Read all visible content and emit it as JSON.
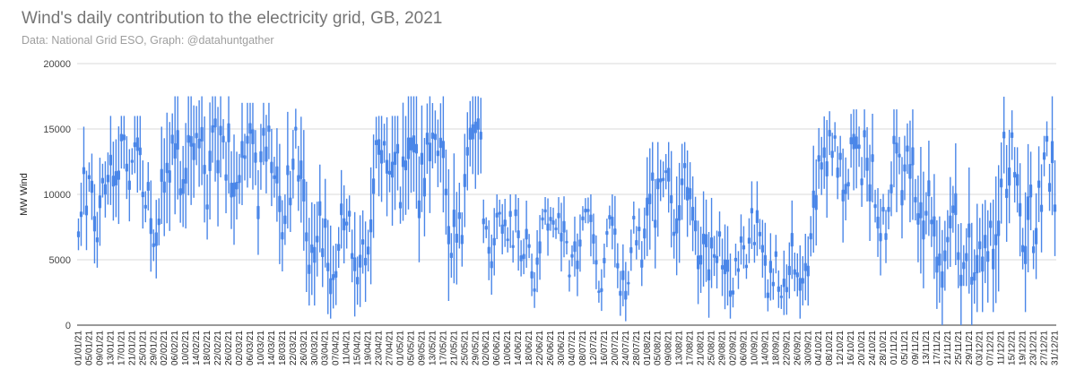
{
  "title": "Wind's daily contribution to the electricity grid, GB, 2021",
  "subtitle": "Data: National Grid ESO, Graph: @datahuntgather",
  "chart_data": {
    "type": "candlestick",
    "ylabel": "MW Wind",
    "xlabel": "",
    "ylim": [
      0,
      20000
    ],
    "yticks": [
      0,
      5000,
      10000,
      15000,
      20000
    ],
    "grid": true,
    "legend": "none",
    "series_color": "#4a86e8",
    "xtick_labels": [
      "01/01/21",
      "05/01/21",
      "09/01/21",
      "13/01/21",
      "17/01/21",
      "21/01/21",
      "25/01/21",
      "29/01/21",
      "02/02/21",
      "06/02/21",
      "10/02/21",
      "14/02/21",
      "18/02/21",
      "22/02/21",
      "26/02/21",
      "02/03/21",
      "06/03/21",
      "10/03/21",
      "14/03/21",
      "18/03/21",
      "22/03/21",
      "26/03/21",
      "30/03/21",
      "03/04/21",
      "07/04/21",
      "11/04/21",
      "15/04/21",
      "19/04/21",
      "23/04/21",
      "27/04/21",
      "01/05/21",
      "05/05/21",
      "09/05/21",
      "13/05/21",
      "17/05/21",
      "21/05/21",
      "25/05/21",
      "29/05/21",
      "02/06/21",
      "06/06/21",
      "10/06/21",
      "14/06/21",
      "18/06/21",
      "22/06/21",
      "26/06/21",
      "30/06/21",
      "04/07/21",
      "08/07/21",
      "12/07/21",
      "16/07/21",
      "20/07/21",
      "24/07/21",
      "28/07/21",
      "01/08/21",
      "05/08/21",
      "09/08/21",
      "13/08/21",
      "17/08/21",
      "21/08/21",
      "25/08/21",
      "29/08/21",
      "02/09/21",
      "06/09/21",
      "10/09/21",
      "14/09/21",
      "18/09/21",
      "22/09/21",
      "26/09/21",
      "30/09/21",
      "04/10/21",
      "08/10/21",
      "12/10/21",
      "16/10/21",
      "20/10/21",
      "24/10/21",
      "28/10/21",
      "01/11/21",
      "05/11/21",
      "09/11/21",
      "13/11/21",
      "17/11/21",
      "21/11/21",
      "25/11/21",
      "29/11/21",
      "03/12/21",
      "07/12/21",
      "11/12/21",
      "15/12/21",
      "19/12/21",
      "23/12/21",
      "27/12/21",
      "31/12/21"
    ],
    "monthly_ranges": [
      {
        "month": "Jan",
        "low": 3500,
        "high": 16000
      },
      {
        "month": "Feb",
        "low": 1000,
        "high": 17500
      },
      {
        "month": "Mar",
        "low": 1500,
        "high": 17000
      },
      {
        "month": "Apr",
        "low": 500,
        "high": 16000
      },
      {
        "month": "May",
        "low": 500,
        "high": 17500
      },
      {
        "month": "Jun",
        "low": 500,
        "high": 10000
      },
      {
        "month": "Jul",
        "low": 300,
        "high": 10000
      },
      {
        "month": "Aug",
        "low": 500,
        "high": 14000
      },
      {
        "month": "Sep",
        "low": 500,
        "high": 11000
      },
      {
        "month": "Oct",
        "low": 2500,
        "high": 16500
      },
      {
        "month": "Nov",
        "low": 0,
        "high": 16500
      },
      {
        "month": "Dec",
        "low": 1000,
        "high": 17500
      }
    ]
  }
}
